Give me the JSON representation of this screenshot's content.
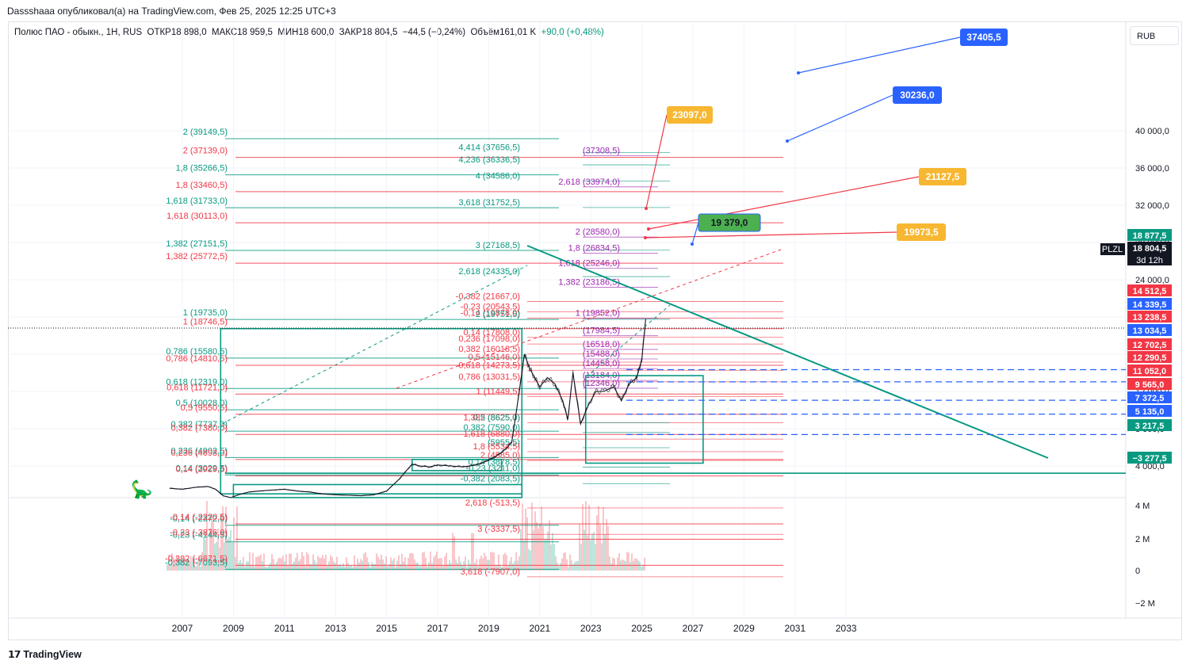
{
  "published_by": "Dassshaaa опубликовал(а) на TradingView.com, Фев 25, 2025 12:25 UTC+3",
  "header": {
    "symbol": "Полюс ПАО - обыкн., 1H, RUS",
    "open": "ОТКР18 898,0",
    "high": "МАКС18 959,5",
    "low": "МИН18 600,0",
    "close": "ЗАКР18 804,5",
    "change": "−44,5 (−0,24%)",
    "volume": "Объём161,01 K",
    "volume_change": "+90,0 (+0,48%)"
  },
  "currency_button": "RUB",
  "footer_brand": "TradingView",
  "chart_data": {
    "type": "line",
    "title": "Полюс ПАО - обыкн., 1H, RUS",
    "symbol_tag": "PLZL",
    "last_price": "18 804,5",
    "countdown": "3d 12h",
    "ylim": [
      -6000,
      44000
    ],
    "y_ticks": [
      "40 000,0",
      "36 000,0",
      "32 000,0",
      "28 000,0",
      "24 000,0",
      "20 000,0",
      "16 000,0",
      "12 000,0",
      "8 000,0",
      "4 000,0"
    ],
    "x_ticks": [
      "2007",
      "2009",
      "2011",
      "2013",
      "2015",
      "2017",
      "2019",
      "2021",
      "2023",
      "2025",
      "2027",
      "2029",
      "2031",
      "2033"
    ],
    "xlim": [
      2006.0,
      2034.0
    ],
    "price_series": {
      "name": "",
      "x": [
        2006.5,
        2007,
        2007.5,
        2008,
        2008.3,
        2008.6,
        2008.9,
        2009.2,
        2009.6,
        2010,
        2010.5,
        2011,
        2011.5,
        2012,
        2012.5,
        2013,
        2013.5,
        2014,
        2014.5,
        2015,
        2015.5,
        2016,
        2016.3,
        2016.7,
        2017,
        2017.5,
        2018,
        2018.5,
        2019,
        2019.5,
        2019.9,
        2020.2,
        2020.4,
        2020.6,
        2020.8,
        2021,
        2021.3,
        2021.6,
        2021.9,
        2022.1,
        2022.3,
        2022.6,
        2022.9,
        2023.2,
        2023.5,
        2023.9,
        2024.2,
        2024.5,
        2024.8,
        2025.0,
        2025.15
      ],
      "y": [
        1600,
        1500,
        1700,
        1800,
        1500,
        800,
        600,
        900,
        1200,
        1300,
        1400,
        1500,
        1300,
        1200,
        1000,
        900,
        850,
        800,
        900,
        1300,
        2600,
        4200,
        4000,
        3900,
        4100,
        4000,
        3900,
        4100,
        4600,
        5400,
        6500,
        12000,
        16000,
        14500,
        13500,
        12500,
        13500,
        12800,
        11000,
        9000,
        14000,
        8500,
        10500,
        12000,
        12000,
        12500,
        11000,
        12800,
        13500,
        15500,
        19800
      ]
    },
    "volume_series": {
      "name": "",
      "y_ticks": [
        "4 M",
        "2 M",
        "0",
        "−2 M"
      ]
    },
    "price_labels": [
      {
        "text": "18 877,5",
        "color": "#089981"
      },
      {
        "text": "18 804,5",
        "color": "#131722"
      },
      {
        "text": "14 512,5",
        "color": "#f23645"
      },
      {
        "text": "14 339,5",
        "color": "#2962ff"
      },
      {
        "text": "13 238,5",
        "color": "#f23645"
      },
      {
        "text": "13 034,5",
        "color": "#2962ff"
      },
      {
        "text": "12 702,5",
        "color": "#f23645"
      },
      {
        "text": "12 290,5",
        "color": "#f23645"
      },
      {
        "text": "11 052,0",
        "color": "#f23645"
      },
      {
        "text": "9 565,0",
        "color": "#f23645"
      },
      {
        "text": "7 372,5",
        "color": "#2962ff"
      },
      {
        "text": "5 135,0",
        "color": "#2962ff"
      },
      {
        "text": "3 217,5",
        "color": "#089981"
      },
      {
        "text": "−3 277,5",
        "color": "#089981"
      }
    ],
    "callouts": [
      {
        "text": "37405,5",
        "color": "#2962ff"
      },
      {
        "text": "30236,0",
        "color": "#2962ff"
      },
      {
        "text": "23097,0",
        "color": "#f7b731"
      },
      {
        "text": "21127,5",
        "color": "#f7b731"
      },
      {
        "text": "19973,5",
        "color": "#f7b731"
      },
      {
        "text": "19 379,0",
        "color": "#4caf50"
      }
    ],
    "fib_labels_left": [
      {
        "text": "2 (39149,5)",
        "color": "#089981"
      },
      {
        "text": "2 (37139,0)",
        "color": "#f23645"
      },
      {
        "text": "1,8 (35266,5)",
        "color": "#089981"
      },
      {
        "text": "1,8 (33460,5)",
        "color": "#f23645"
      },
      {
        "text": "1,618 (31733,0)",
        "color": "#089981"
      },
      {
        "text": "1,618 (30113,0)",
        "color": "#f23645"
      },
      {
        "text": "1,382 (27151,5)",
        "color": "#089981"
      },
      {
        "text": "1,382 (25772,5)",
        "color": "#f23645"
      },
      {
        "text": "1 (19735,0)",
        "color": "#089981"
      },
      {
        "text": "1 (18746,5)",
        "color": "#f23645"
      },
      {
        "text": "0,786 (15580,5)",
        "color": "#089981"
      },
      {
        "text": "0,786 (14810,5)",
        "color": "#f23645"
      },
      {
        "text": "0,618 (12319,0)",
        "color": "#089981"
      },
      {
        "text": "0,618 (11721,0)",
        "color": "#f23645"
      },
      {
        "text": "0,5 (10028,0)",
        "color": "#089981"
      },
      {
        "text": "0,5 (9550,5)",
        "color": "#f23645"
      },
      {
        "text": "0,382 (7737,0)",
        "color": "#089981"
      },
      {
        "text": "0,382 (7380,0)",
        "color": "#f23645"
      },
      {
        "text": "0,236 (4902,5)",
        "color": "#089981"
      },
      {
        "text": "0,236 (4693,0)",
        "color": "#f23645"
      },
      {
        "text": "0,14 (3029,5)",
        "color": "#089981"
      },
      {
        "text": "0,14 (2929,5)",
        "color": "#f23645"
      },
      {
        "text": "-0,14 (-2372,0)",
        "color": "#089981"
      },
      {
        "text": "-0,14 (-2220,5)",
        "color": "#f23645"
      },
      {
        "text": "-0,23 (-4144,5)",
        "color": "#089981"
      },
      {
        "text": "-0,23 (-3876,0)",
        "color": "#f23645"
      },
      {
        "text": "-0,382 (-7093,5)",
        "color": "#089981"
      },
      {
        "text": "-0,382 (-6671,5)",
        "color": "#f23645"
      }
    ],
    "fib_labels_mid": [
      {
        "text": "4,414 (37656,5)",
        "color": "#089981"
      },
      {
        "text": "(37308,5)",
        "color": "#9c27b0"
      },
      {
        "text": "4,236 (36336,5)",
        "color": "#089981"
      },
      {
        "text": "4 (34586,0)",
        "color": "#089981"
      },
      {
        "text": "2,618 (33974,0)",
        "color": "#9c27b0"
      },
      {
        "text": "3,618 (31752,5)",
        "color": "#089981"
      },
      {
        "text": "2 (28580,0)",
        "color": "#9c27b0"
      },
      {
        "text": "3 (27168,5)",
        "color": "#089981"
      },
      {
        "text": "1,8 (26834,5)",
        "color": "#9c27b0"
      },
      {
        "text": "1,618 (25246,0)",
        "color": "#9c27b0"
      },
      {
        "text": "2,618 (24335,0)",
        "color": "#089981"
      },
      {
        "text": "1,382 (23186,5)",
        "color": "#9c27b0"
      },
      {
        "text": "-0,382 (21667,0)",
        "color": "#f23645"
      },
      {
        "text": "-0,23 (20543,5)",
        "color": "#f23645"
      },
      {
        "text": "-0,14 (19878,0)",
        "color": "#f23645"
      },
      {
        "text": "2 (19751,5)",
        "color": "#089981"
      },
      {
        "text": "1 (19852,0)",
        "color": "#9c27b0"
      },
      {
        "text": "0,14 (17808,0)",
        "color": "#f23645"
      },
      {
        "text": "(17984,5)",
        "color": "#9c27b0"
      },
      {
        "text": "0,236 (17098,0)",
        "color": "#f23645"
      },
      {
        "text": "(16518,0)",
        "color": "#9c27b0"
      },
      {
        "text": "0,382 (16018,5)",
        "color": "#f23645"
      },
      {
        "text": "0,5 (15146,0)",
        "color": "#f23645"
      },
      {
        "text": "(15488,0)",
        "color": "#9c27b0"
      },
      {
        "text": "0,618 (14273,5)",
        "color": "#f23645"
      },
      {
        "text": "(14458,0)",
        "color": "#9c27b0"
      },
      {
        "text": "0,786 (13031,5)",
        "color": "#f23645"
      },
      {
        "text": "(13184,0)",
        "color": "#9c27b0"
      },
      {
        "text": "(12346,0)",
        "color": "#9c27b0"
      },
      {
        "text": "1 (11449,5)",
        "color": "#f23645"
      },
      {
        "text": "1,382 (8625,0)",
        "color": "#f23645"
      },
      {
        "text": "0,5 (8625,0)",
        "color": "#089981"
      },
      {
        "text": "0,382 (7590,0)",
        "color": "#089981"
      },
      {
        "text": "1,618 (6880,0)",
        "color": "#f23645"
      },
      {
        "text": "(5955,5)",
        "color": "#089981"
      },
      {
        "text": "1,8 (5534,5)",
        "color": "#f23645"
      },
      {
        "text": "2 (4585,0)",
        "color": "#f23645"
      },
      {
        "text": "0,14 (3878,5)",
        "color": "#089981"
      },
      {
        "text": "-0,23 (3211,0)",
        "color": "#089981"
      },
      {
        "text": "-0,382 (2083,5)",
        "color": "#089981"
      },
      {
        "text": "2,618 (-513,5)",
        "color": "#f23645"
      },
      {
        "text": "3 (-3337,5)",
        "color": "#f23645"
      },
      {
        "text": "3,618 (-7907,0)",
        "color": "#f23645"
      }
    ]
  }
}
